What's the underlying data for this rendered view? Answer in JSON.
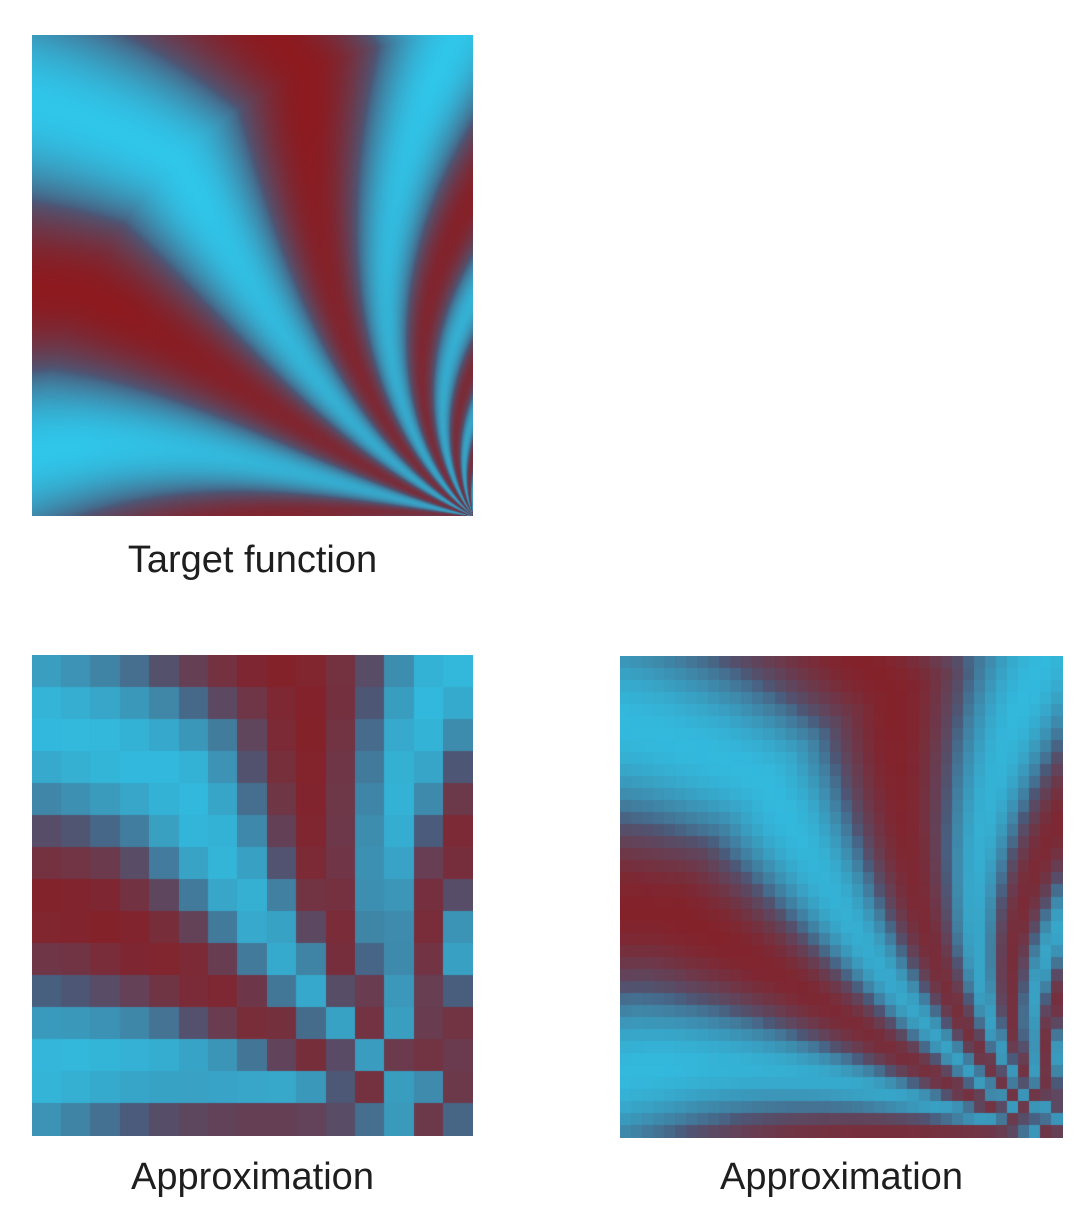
{
  "panels": [
    {
      "id": "target",
      "caption": "Target function",
      "render": "smooth"
    },
    {
      "id": "approx_coarse",
      "caption": "Approximation",
      "render": "pixelated",
      "grid_cells": 15
    },
    {
      "id": "approx_fine",
      "caption": "Approximation",
      "render": "pixelated",
      "grid_cells": 40
    }
  ],
  "colors": {
    "positive": "#8c1a1f",
    "negative": "#2fc6ea",
    "neutral": "#4a5a7a",
    "caption_text": "#1e1e1e"
  }
}
